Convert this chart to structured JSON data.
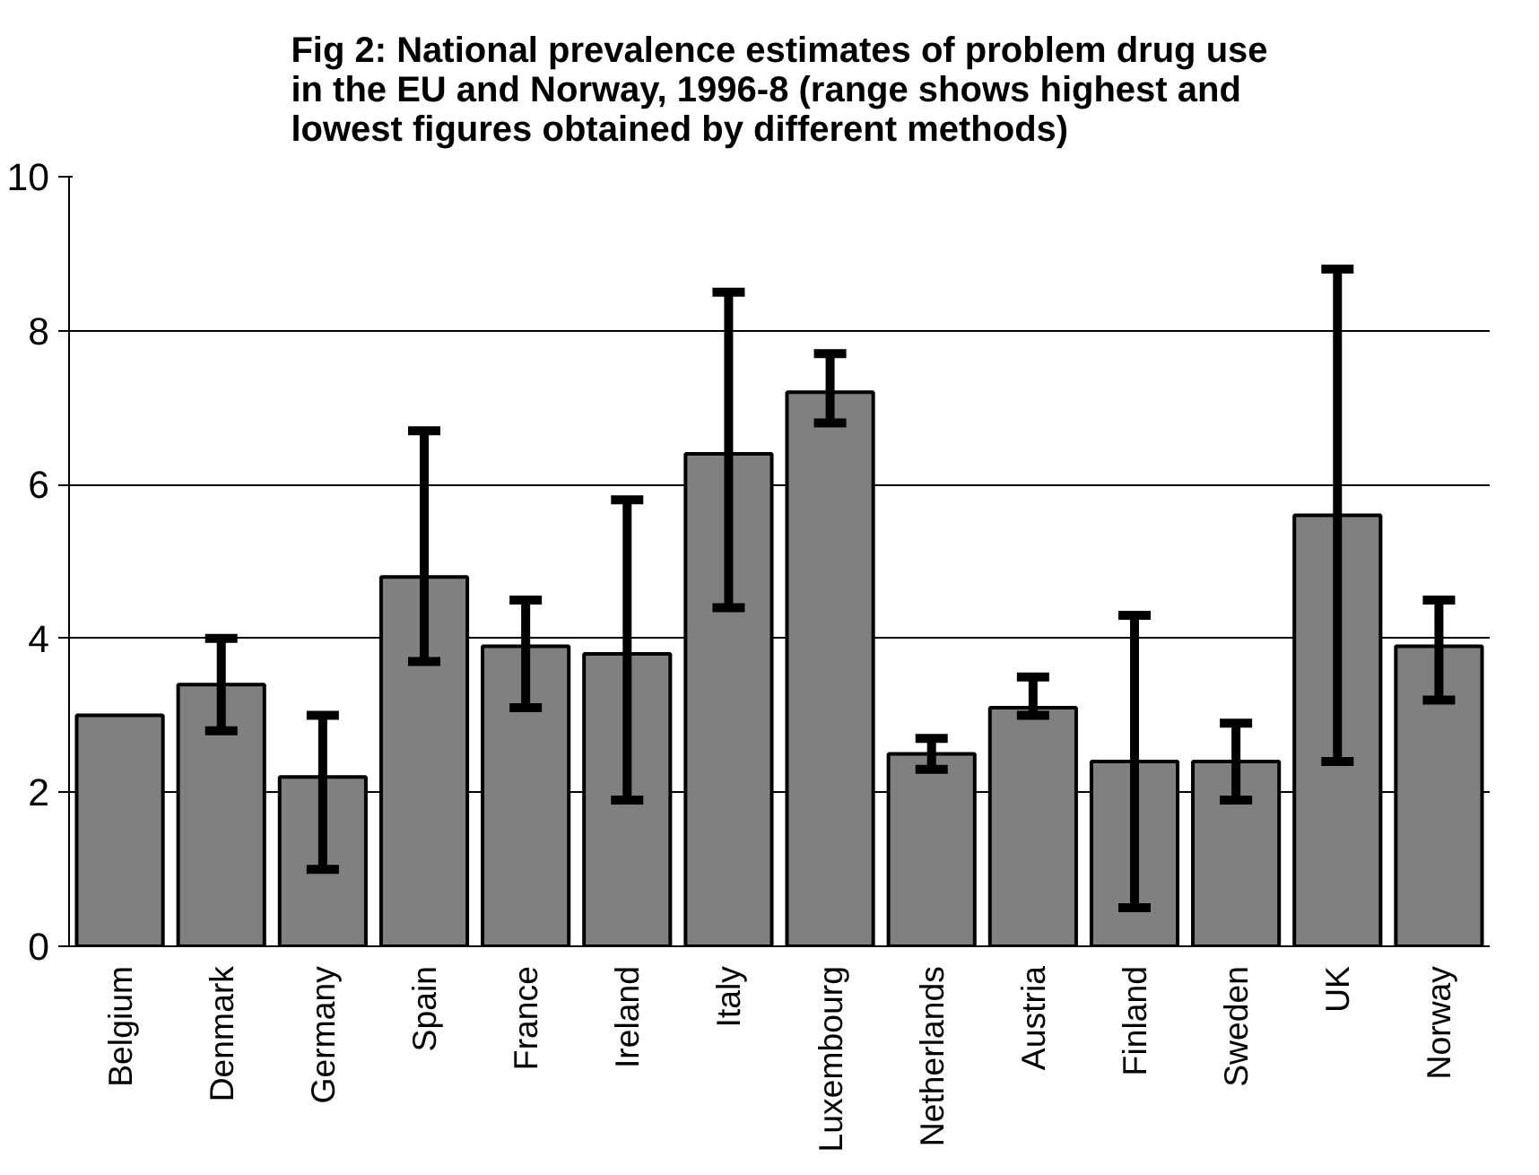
{
  "chart_data": {
    "type": "bar",
    "title": "Fig 2: National prevalence estimates of problem drug use in the EU and Norway, 1996-8 (range shows highest and lowest figures obtained by different methods)",
    "categories": [
      "Belgium",
      "Denmark",
      "Germany",
      "Spain",
      "France",
      "Ireland",
      "Italy",
      "Luxembourg",
      "Netherlands",
      "Austria",
      "Finland",
      "Sweden",
      "UK",
      "Norway"
    ],
    "values": [
      3.0,
      3.4,
      2.2,
      4.8,
      3.9,
      3.8,
      6.4,
      7.2,
      2.5,
      3.1,
      2.4,
      2.4,
      5.6,
      3.9
    ],
    "errors": [
      null,
      [
        2.8,
        4.0
      ],
      [
        1.0,
        3.0
      ],
      [
        3.7,
        6.7
      ],
      [
        3.1,
        4.5
      ],
      [
        1.9,
        5.8
      ],
      [
        4.4,
        8.5
      ],
      [
        6.8,
        7.7
      ],
      [
        2.3,
        2.7
      ],
      [
        3.0,
        3.5
      ],
      [
        0.5,
        4.3
      ],
      [
        1.9,
        2.9
      ],
      [
        2.4,
        8.8
      ],
      [
        3.2,
        4.5
      ]
    ],
    "color": "#808080",
    "ylim": [
      0,
      10
    ],
    "yticks": [
      0,
      2,
      4,
      6,
      8,
      10
    ],
    "grid": "y"
  }
}
